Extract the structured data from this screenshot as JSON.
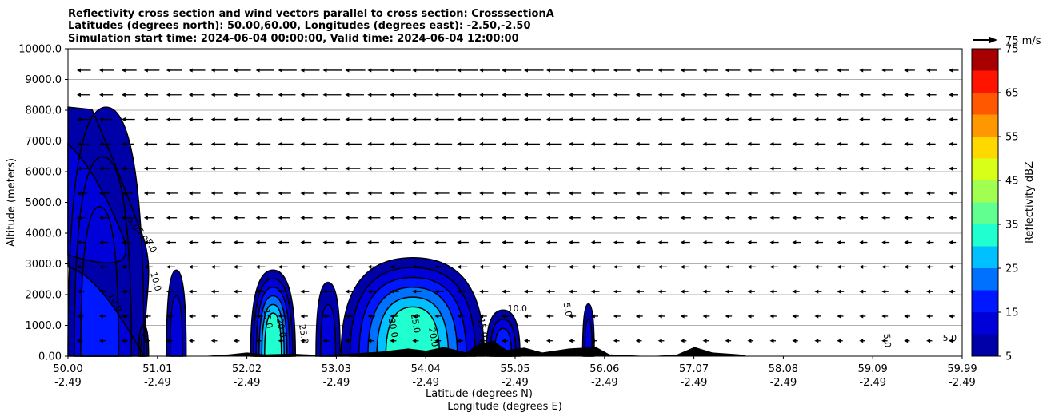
{
  "chart_data": {
    "type": "contour",
    "title_lines": [
      "Reflectivity cross section and wind vectors parallel to cross section: CrosssectionA",
      "Latitudes (degrees north): 50.00,60.00, Longitudes (degrees east): -2.50,-2.50",
      "Simulation start time: 2024-06-04 00:00:00, Valid time: 2024-06-04 12:00:00"
    ],
    "xlabel_lat": "Latitude (degrees N)",
    "xlabel_lon": "Longitude (degrees E)",
    "ylabel": "Altitude (meters)",
    "x_ticks_lat": [
      "50.00",
      "51.01",
      "52.02",
      "53.03",
      "54.04",
      "55.05",
      "56.06",
      "57.07",
      "58.08",
      "59.09",
      "59.99"
    ],
    "x_ticks_lon": [
      "-2.49",
      "-2.49",
      "-2.49",
      "-2.49",
      "-2.49",
      "-2.49",
      "-2.49",
      "-2.49",
      "-2.49",
      "-2.49",
      "-2.49"
    ],
    "x_range": [
      50.0,
      59.99
    ],
    "y_ticks": [
      "0.00",
      "1000.0",
      "2000.0",
      "3000.0",
      "4000.0",
      "5000.0",
      "6000.0",
      "7000.0",
      "8000.0",
      "9000.0",
      "10000.0"
    ],
    "y_range": [
      0,
      10000
    ],
    "grid": "horizontal",
    "quiver_key": "75 m/s",
    "colorbar": {
      "label": "Reflectivity dBZ",
      "ticks": [
        "5",
        "15",
        "25",
        "35",
        "45",
        "55",
        "65",
        "75"
      ],
      "levels": [
        5,
        10,
        15,
        20,
        25,
        30,
        35,
        40,
        45,
        50,
        55,
        60,
        65,
        70,
        75
      ],
      "colors": [
        "#0000a8",
        "#0000d8",
        "#0018ff",
        "#0070ff",
        "#00c0ff",
        "#20ffd0",
        "#60ff90",
        "#a0ff50",
        "#d8ff18",
        "#ffd800",
        "#ff9800",
        "#ff5800",
        "#ff1400",
        "#a80000"
      ]
    },
    "cells": [
      {
        "lat_range": [
          50.0,
          50.85
        ],
        "top": 8100,
        "peak": 15
      },
      {
        "lat_range": [
          50.79,
          50.9
        ],
        "top": 1000,
        "peak": 10
      },
      {
        "lat_range": [
          51.1,
          51.32
        ],
        "top": 2800,
        "peak": 10
      },
      {
        "lat_range": [
          52.04,
          52.54
        ],
        "top": 2800,
        "peak": 30
      },
      {
        "lat_range": [
          52.77,
          53.04
        ],
        "top": 2400,
        "peak": 10
      },
      {
        "lat_range": [
          53.05,
          54.65
        ],
        "top": 3200,
        "peak": 30
      },
      {
        "lat_range": [
          54.67,
          55.05
        ],
        "top": 1500,
        "peak": 15
      },
      {
        "lat_range": [
          55.75,
          55.88
        ],
        "top": 1700,
        "peak": 10
      }
    ],
    "contour_labels": [
      "5.0",
      "5.0",
      "5.0",
      "10.0",
      "10.0",
      "15.0",
      "20.0",
      "25.0",
      "30.0",
      "25.0",
      "20.0",
      "15.0",
      "10.0",
      "5.0",
      "5.0",
      "5.0"
    ]
  }
}
